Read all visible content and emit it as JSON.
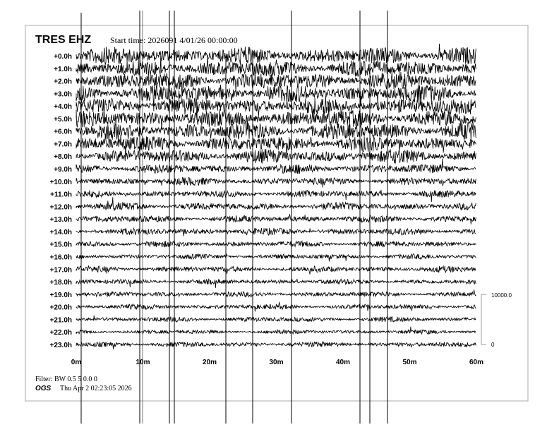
{
  "header": {
    "station": "TRES EHZ",
    "start_time": "Start time: 2026091   4/01/26 00:00:00"
  },
  "footer": {
    "filter": "Filter: BW 0.5 5 0.0 0",
    "org": "OGS",
    "timestamp": "Thu Apr  2 02:23:05 2026"
  },
  "chart_data": {
    "type": "line",
    "description_type": "helicorder",
    "row_labels": [
      "+0.0h",
      "+1.0h",
      "+2.0h",
      "+3.0h",
      "+4.0h",
      "+5.0h",
      "+6.0h",
      "+7.0h",
      "+8.0h",
      "+9.0h",
      "+10.0h",
      "+11.0h",
      "+12.0h",
      "+13.0h",
      "+14.0h",
      "+15.0h",
      "+16.0h",
      "+17.0h",
      "+18.0h",
      "+19.0h",
      "+20.0h",
      "+21.0h",
      "+22.0h",
      "+23.0h"
    ],
    "x_ticks": [
      "0m",
      "10m",
      "20m",
      "30m",
      "40m",
      "50m",
      "60m"
    ],
    "xlim": [
      0,
      60
    ],
    "relative_amplitude": [
      1.0,
      1.0,
      1.0,
      1.0,
      1.0,
      1.0,
      1.0,
      0.9,
      0.8,
      0.55,
      0.45,
      0.4,
      0.45,
      0.4,
      0.4,
      0.35,
      0.3,
      0.35,
      0.3,
      0.3,
      0.3,
      0.3,
      0.25,
      0.3
    ],
    "scale_bar": {
      "top": "10000.0",
      "bottom": "0"
    },
    "trace_color": "#000000"
  }
}
